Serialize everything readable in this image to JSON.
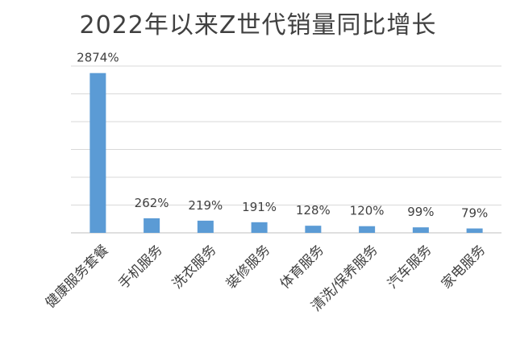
{
  "chart_data": {
    "type": "bar",
    "title": "2022年以来Z世代销量同比增长",
    "xlabel": "",
    "ylabel": "",
    "ylim": [
      0,
      3000
    ],
    "y_grid": true,
    "y_tick_labels_shown": false,
    "legend": "none",
    "bar_color": "#5b9bd5",
    "categories": [
      "健康服务套餐",
      "手机服务",
      "洗衣服务",
      "装修服务",
      "体育服务",
      "清洗/保养服务",
      "汽车服务",
      "家电服务"
    ],
    "values": [
      2874,
      262,
      219,
      191,
      128,
      120,
      99,
      79
    ],
    "data_labels": [
      "2874%",
      "262%",
      "219%",
      "191%",
      "128%",
      "120%",
      "99%",
      "79%"
    ]
  }
}
